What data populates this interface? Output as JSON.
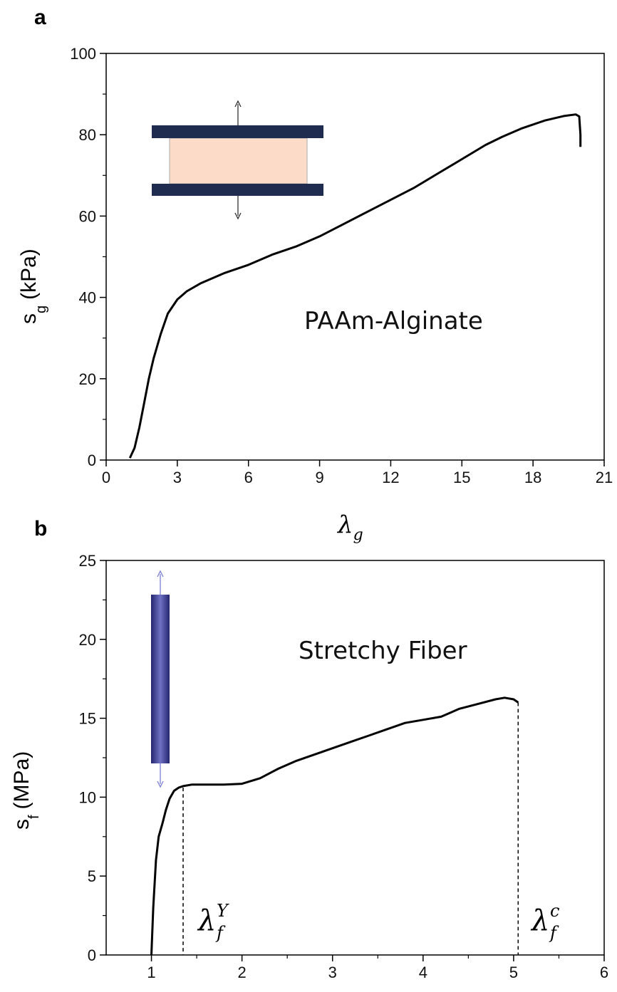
{
  "chart_data": [
    {
      "type": "line",
      "panel_label": "a",
      "xlabel": "λ",
      "xlabel_sub": "g",
      "ylabel": "s",
      "ylabel_sub": "g",
      "ylabel_unit": "(kPa)",
      "annotation": "PAAm-Alginate",
      "xlim": [
        0,
        21
      ],
      "ylim": [
        0,
        100
      ],
      "xticks": [
        0,
        3,
        6,
        9,
        12,
        15,
        18,
        21
      ],
      "yticks": [
        0,
        20,
        40,
        60,
        80,
        100
      ],
      "grid": false,
      "series": [
        {
          "color": "#000000",
          "x": [
            1.0,
            1.2,
            1.4,
            1.6,
            1.8,
            2.0,
            2.3,
            2.6,
            3.0,
            3.4,
            4.0,
            5.0,
            6.0,
            7.0,
            8.0,
            9.0,
            10.0,
            11.0,
            12.0,
            13.0,
            14.0,
            15.0,
            16.0,
            16.7,
            17.5,
            18.5,
            19.3,
            19.8,
            19.95,
            20.0,
            20.0
          ],
          "y": [
            0.5,
            3,
            8,
            14,
            20,
            25,
            31,
            36,
            39.5,
            41.5,
            43.5,
            46,
            48,
            50.5,
            52.5,
            55,
            58,
            61,
            64,
            67,
            70.5,
            74,
            77.5,
            79.5,
            81.5,
            83.5,
            84.6,
            85,
            84.5,
            80,
            77
          ]
        }
      ],
      "inset": {
        "plate_color": "#1f2b4f",
        "gel_color": "#fcdcc8"
      }
    },
    {
      "type": "line",
      "panel_label": "b",
      "ylabel": "s",
      "ylabel_sub": "f",
      "ylabel_unit": "(MPa)",
      "annotation": "Stretchy Fiber",
      "xlim": [
        0.5,
        6
      ],
      "ylim": [
        0,
        25
      ],
      "xticks": [
        1,
        2,
        3,
        4,
        5,
        6
      ],
      "yticks": [
        0,
        5,
        10,
        15,
        20,
        25
      ],
      "grid": false,
      "series": [
        {
          "color": "#000000",
          "x": [
            1.0,
            1.02,
            1.05,
            1.08,
            1.12,
            1.16,
            1.2,
            1.25,
            1.3,
            1.35,
            1.45,
            1.6,
            1.8,
            2.0,
            2.2,
            2.4,
            2.6,
            2.8,
            3.0,
            3.2,
            3.4,
            3.6,
            3.8,
            4.0,
            4.2,
            4.4,
            4.6,
            4.8,
            4.9,
            5.0,
            5.05
          ],
          "y": [
            0,
            3,
            6,
            7.5,
            8.3,
            9.2,
            9.9,
            10.4,
            10.6,
            10.7,
            10.8,
            10.8,
            10.8,
            10.85,
            11.2,
            11.8,
            12.3,
            12.7,
            13.1,
            13.5,
            13.9,
            14.3,
            14.7,
            14.9,
            15.1,
            15.6,
            15.9,
            16.2,
            16.3,
            16.2,
            16.0
          ]
        }
      ],
      "markers": [
        {
          "x": 1.35,
          "y": 10.6,
          "label": "λ",
          "sub": "f",
          "sup": "Y"
        },
        {
          "x": 5.05,
          "y": 16.0,
          "label": "λ",
          "sub": "f",
          "sup": "c"
        }
      ],
      "inset": {
        "fiber_color": "#2e2f80",
        "arrow_color": "#7b7fd0"
      }
    }
  ]
}
